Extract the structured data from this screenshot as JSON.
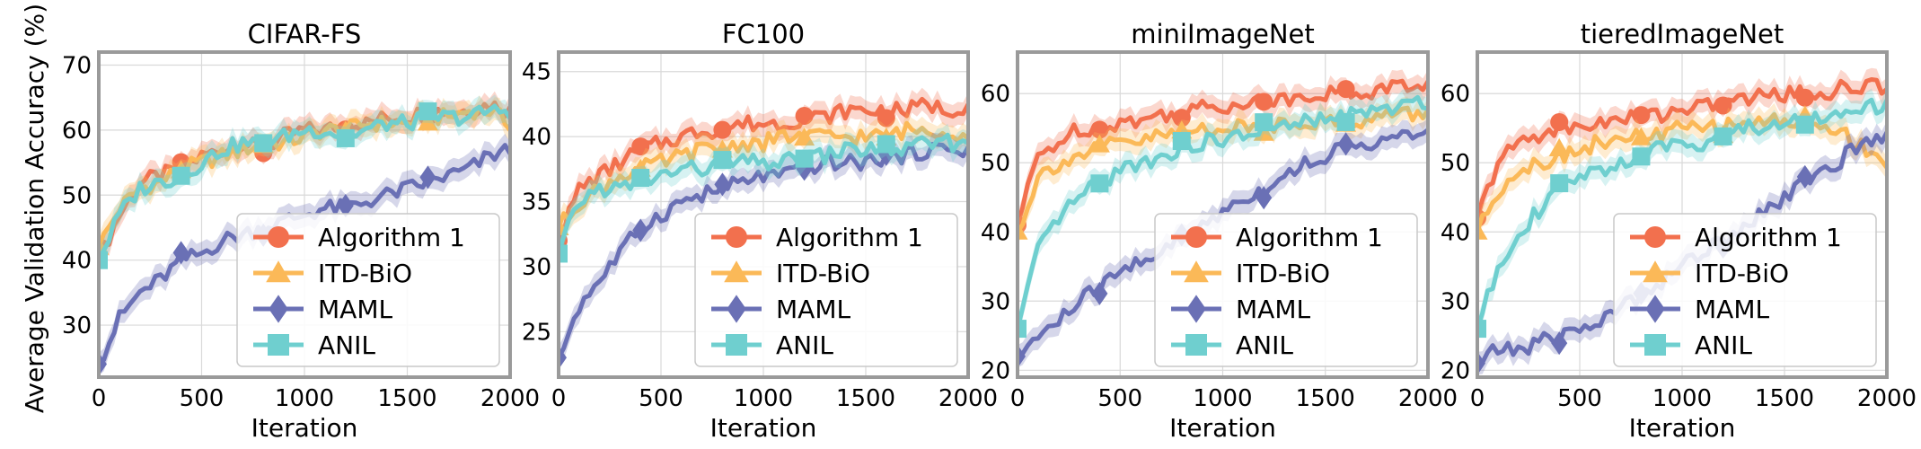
{
  "figure": {
    "ylabel": "Average Validation Accuracy (%)"
  },
  "series_styles": [
    {
      "name": "Algorithm 1",
      "color": "#f2704e",
      "marker": "circle"
    },
    {
      "name": "ITD-BiO",
      "color": "#fbb958",
      "marker": "triangle"
    },
    {
      "name": "MAML",
      "color": "#6a70b5",
      "marker": "diamond"
    },
    {
      "name": "ANIL",
      "color": "#6fcfcf",
      "marker": "square"
    }
  ],
  "chart_data": [
    {
      "type": "line",
      "title": "CIFAR-FS",
      "xlabel": "Iteration",
      "ylabel": "Average Validation Accuracy (%)",
      "xlim": [
        0,
        2000
      ],
      "ylim": [
        22,
        72
      ],
      "xticks": [
        0,
        500,
        1000,
        1500,
        2000
      ],
      "yticks": [
        30,
        40,
        50,
        60,
        70
      ],
      "legend_position": "bottom-right",
      "grid": true,
      "x": [
        0,
        100,
        200,
        300,
        400,
        500,
        600,
        700,
        800,
        900,
        1000,
        1100,
        1200,
        1300,
        1400,
        1500,
        1600,
        1700,
        1800,
        1900,
        2000
      ],
      "series": [
        {
          "name": "Algorithm 1",
          "values": [
            40,
            47,
            52,
            53,
            54,
            56,
            57,
            58,
            57,
            59,
            60,
            60,
            61,
            61,
            62,
            62,
            63,
            63,
            63,
            64,
            63
          ]
        },
        {
          "name": "ITD-BiO",
          "values": [
            42,
            48,
            51,
            52,
            54,
            55,
            56,
            57,
            58,
            58,
            59,
            60,
            60,
            61,
            61,
            61,
            62,
            62,
            63,
            63,
            61
          ]
        },
        {
          "name": "MAML",
          "values": [
            24,
            31,
            35,
            37,
            40,
            41,
            43,
            44,
            45,
            46,
            47,
            48,
            48,
            49,
            50,
            51,
            52,
            53,
            54,
            56,
            57
          ]
        },
        {
          "name": "ANIL",
          "values": [
            40,
            47,
            51,
            52,
            53,
            55,
            57,
            58,
            58,
            59,
            60,
            60,
            59,
            60,
            61,
            61,
            62,
            62,
            62,
            63,
            63
          ]
        }
      ]
    },
    {
      "type": "line",
      "title": "FC100",
      "xlabel": "Iteration",
      "ylabel": "",
      "xlim": [
        0,
        2000
      ],
      "ylim": [
        21.5,
        46.5
      ],
      "xticks": [
        0,
        500,
        1000,
        1500,
        2000
      ],
      "yticks": [
        25,
        30,
        35,
        40,
        45
      ],
      "legend_position": "bottom-right",
      "grid": true,
      "x": [
        0,
        100,
        200,
        300,
        400,
        500,
        600,
        700,
        800,
        900,
        1000,
        1100,
        1200,
        1300,
        1400,
        1500,
        1600,
        1700,
        1800,
        1900,
        2000
      ],
      "series": [
        {
          "name": "Algorithm 1",
          "values": [
            32,
            36,
            37,
            38,
            39,
            39.5,
            40,
            40.5,
            40.5,
            41,
            41,
            41,
            41.5,
            41.5,
            42,
            42,
            42,
            42,
            42.5,
            42,
            42.5
          ]
        },
        {
          "name": "ITD-BiO",
          "values": [
            33,
            35,
            36,
            37,
            37.5,
            38,
            38.5,
            39,
            39,
            39.5,
            39.5,
            40,
            40,
            40,
            40,
            40,
            40,
            40.5,
            40.5,
            40.5,
            40
          ]
        },
        {
          "name": "MAML",
          "values": [
            23,
            27,
            29,
            31,
            33,
            34,
            35,
            35.5,
            36,
            36.5,
            37,
            37,
            37.5,
            38,
            38,
            38,
            38.5,
            38.5,
            39,
            39,
            39
          ]
        },
        {
          "name": "ANIL",
          "values": [
            31,
            35,
            36,
            36,
            36.5,
            37,
            37.5,
            37.5,
            38,
            38,
            38,
            38,
            38.5,
            38.5,
            39,
            39,
            39,
            39,
            39.5,
            39.5,
            39.5
          ]
        }
      ]
    },
    {
      "type": "line",
      "title": "miniImageNet",
      "xlabel": "Iteration",
      "ylabel": "",
      "xlim": [
        0,
        2000
      ],
      "ylim": [
        19,
        66
      ],
      "xticks": [
        0,
        500,
        1000,
        1500,
        2000
      ],
      "yticks": [
        20,
        30,
        40,
        50,
        60
      ],
      "legend_position": "bottom-right",
      "grid": true,
      "x": [
        0,
        100,
        200,
        300,
        400,
        500,
        600,
        700,
        800,
        900,
        1000,
        1100,
        1200,
        1300,
        1400,
        1500,
        1600,
        1700,
        1800,
        1900,
        2000
      ],
      "series": [
        {
          "name": "Algorithm 1",
          "values": [
            41,
            51,
            53,
            55,
            55,
            56,
            56,
            57,
            57,
            58,
            58,
            59,
            59,
            59,
            60,
            60,
            60,
            60,
            61,
            61,
            61
          ]
        },
        {
          "name": "ITD-BiO",
          "values": [
            40,
            48,
            50,
            51,
            52,
            53,
            53,
            54,
            54,
            55,
            55,
            55,
            55,
            56,
            56,
            56,
            56,
            56,
            57,
            57,
            57
          ]
        },
        {
          "name": "MAML",
          "values": [
            22,
            25,
            27,
            30,
            32,
            34,
            36,
            37,
            39,
            41,
            43,
            45,
            46,
            48,
            50,
            51,
            52,
            53,
            53,
            54,
            54
          ]
        },
        {
          "name": "ANIL",
          "values": [
            26,
            37,
            42,
            45,
            47,
            49,
            50,
            51,
            52,
            53,
            53,
            54,
            55,
            55,
            56,
            56,
            57,
            57,
            58,
            58,
            59
          ]
        }
      ]
    },
    {
      "type": "line",
      "title": "tieredImageNet",
      "xlabel": "Iteration",
      "ylabel": "",
      "xlim": [
        0,
        2000
      ],
      "ylim": [
        19,
        66
      ],
      "xticks": [
        0,
        500,
        1000,
        1500,
        2000
      ],
      "yticks": [
        20,
        30,
        40,
        50,
        60
      ],
      "legend_position": "bottom-right",
      "grid": true,
      "x": [
        0,
        100,
        200,
        300,
        400,
        500,
        600,
        700,
        800,
        900,
        1000,
        1100,
        1200,
        1300,
        1400,
        1500,
        1600,
        1700,
        1800,
        1900,
        2000
      ],
      "series": [
        {
          "name": "Algorithm 1",
          "values": [
            42,
            50,
            53,
            54,
            55,
            55,
            56,
            56,
            57,
            57,
            58,
            58,
            59,
            59,
            60,
            60,
            60,
            60,
            61,
            61,
            61
          ]
        },
        {
          "name": "ITD-BiO",
          "values": [
            40,
            46,
            49,
            50,
            51,
            52,
            53,
            53,
            54,
            54,
            55,
            55,
            55,
            56,
            56,
            56,
            56,
            55,
            54,
            52,
            50
          ]
        },
        {
          "name": "MAML",
          "values": [
            21,
            23,
            23,
            24,
            25,
            26,
            27,
            29,
            31,
            33,
            35,
            37,
            39,
            41,
            43,
            45,
            47,
            49,
            51,
            53,
            54
          ]
        },
        {
          "name": "ANIL",
          "values": [
            26,
            35,
            40,
            43,
            46,
            48,
            49,
            50,
            51,
            52,
            53,
            53,
            54,
            55,
            55,
            56,
            56,
            57,
            57,
            58,
            58
          ]
        }
      ]
    }
  ]
}
